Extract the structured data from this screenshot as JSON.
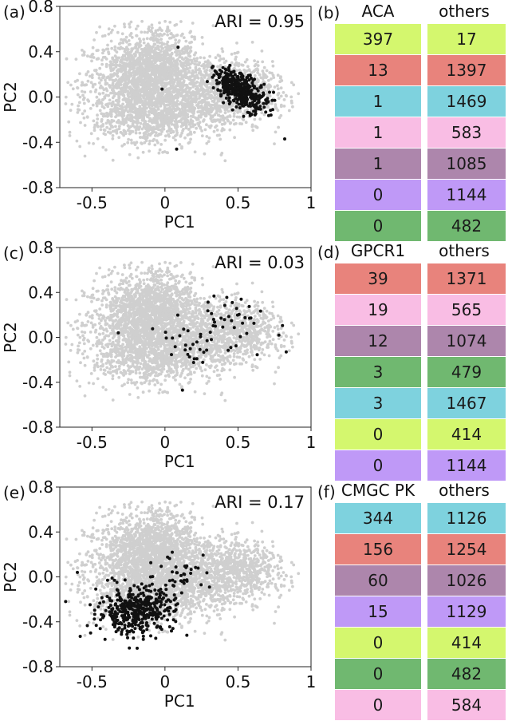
{
  "colors": {
    "background_points": "#cfcfcf",
    "highlight_points": "#111111",
    "cluster_lime": "#d4f76e",
    "cluster_red": "#e8837c",
    "cluster_cyan": "#7ed2de",
    "cluster_pink": "#f9bde4",
    "cluster_mauve": "#ad86ac",
    "cluster_lavender": "#bf99f7",
    "cluster_green": "#70b870"
  },
  "chart_data": [
    {
      "type": "scatter",
      "panel_label": "(a)",
      "annotation": "ARI = 0.95",
      "xlabel": "PC1",
      "ylabel": "PC2",
      "xlim": [
        -0.72,
        1.0
      ],
      "ylim": [
        -0.8,
        0.8
      ],
      "xticks": [
        -0.5,
        0,
        0.5,
        1
      ],
      "xtick_labels": [
        "-0.5",
        "0",
        "0.5",
        "1"
      ],
      "yticks": [
        0.8,
        0.4,
        0.0,
        -0.4,
        -0.8
      ],
      "ytick_labels": [
        "0.8",
        "0.4",
        "0.0",
        "-0.4",
        "-0.8"
      ],
      "series": [
        {
          "name": "others",
          "color": "#cfcfcf",
          "distribution": "background"
        },
        {
          "name": "ACA",
          "color": "#111111",
          "clusters": [
            {
              "cx": 0.52,
              "cy": 0.06,
              "sx": 0.09,
              "sy": 0.09,
              "rho": -0.55,
              "n": 380
            }
          ],
          "outliers": [
            [
              0.09,
              0.44
            ],
            [
              -0.02,
              0.07
            ],
            [
              0.08,
              -0.46
            ],
            [
              0.82,
              -0.37
            ],
            [
              0.35,
              0.22
            ]
          ]
        }
      ]
    },
    {
      "type": "scatter",
      "panel_label": "(c)",
      "annotation": "ARI = 0.03",
      "xlabel": "PC1",
      "ylabel": "PC2",
      "xlim": [
        -0.72,
        1.0
      ],
      "ylim": [
        -0.8,
        0.8
      ],
      "xticks": [
        -0.5,
        0,
        0.5,
        1
      ],
      "xtick_labels": [
        "-0.5",
        "0",
        "0.5",
        "1"
      ],
      "yticks": [
        0.8,
        0.4,
        0.0,
        -0.4,
        -0.8
      ],
      "ytick_labels": [
        "0.8",
        "0.4",
        "0.0",
        "-0.4",
        "-0.8"
      ],
      "series": [
        {
          "name": "others",
          "color": "#cfcfcf",
          "distribution": "background"
        },
        {
          "name": "GPCR1",
          "color": "#111111",
          "clusters": [
            {
              "cx": 0.45,
              "cy": 0.15,
              "sx": 0.15,
              "sy": 0.16,
              "rho": 0.0,
              "n": 42
            },
            {
              "cx": 0.1,
              "cy": -0.05,
              "sx": 0.1,
              "sy": 0.08,
              "rho": 0.0,
              "n": 22
            }
          ],
          "outliers": [
            [
              -0.32,
              0.04
            ],
            [
              0.12,
              -0.47
            ],
            [
              0.83,
              -0.13
            ],
            [
              0.78,
              0.02
            ]
          ]
        }
      ]
    },
    {
      "type": "scatter",
      "panel_label": "(e)",
      "annotation": "ARI = 0.17",
      "xlabel": "PC1",
      "ylabel": "PC2",
      "xlim": [
        -0.72,
        1.0
      ],
      "ylim": [
        -0.8,
        0.8
      ],
      "xticks": [
        -0.5,
        0,
        0.5,
        1
      ],
      "xtick_labels": [
        "-0.5",
        "0",
        "0.5",
        "1"
      ],
      "yticks": [
        0.8,
        0.4,
        0.0,
        -0.4,
        -0.8
      ],
      "ytick_labels": [
        "0.8",
        "0.4",
        "0.0",
        "-0.4",
        "-0.8"
      ],
      "series": [
        {
          "name": "others",
          "color": "#cfcfcf",
          "distribution": "background"
        },
        {
          "name": "CMGC PK",
          "color": "#111111",
          "clusters": [
            {
              "cx": -0.2,
              "cy": -0.3,
              "sx": 0.13,
              "sy": 0.1,
              "rho": 0.1,
              "n": 430
            },
            {
              "cx": 0.1,
              "cy": 0.02,
              "sx": 0.12,
              "sy": 0.1,
              "rho": 0.0,
              "n": 40
            }
          ],
          "outliers": [
            [
              -0.58,
              -0.53
            ],
            [
              -0.6,
              0.04
            ],
            [
              0.05,
              0.22
            ],
            [
              0.15,
              -0.52
            ],
            [
              -0.68,
              -0.22
            ]
          ]
        }
      ]
    },
    {
      "type": "table",
      "panel_label": "(b)",
      "headers": [
        "ACA",
        "others"
      ],
      "rows": [
        {
          "color": "#d4f76e",
          "values": [
            "397",
            "17"
          ]
        },
        {
          "color": "#e8837c",
          "values": [
            "13",
            "1397"
          ]
        },
        {
          "color": "#7ed2de",
          "values": [
            "1",
            "1469"
          ]
        },
        {
          "color": "#f9bde4",
          "values": [
            "1",
            "583"
          ]
        },
        {
          "color": "#ad86ac",
          "values": [
            "1",
            "1085"
          ]
        },
        {
          "color": "#bf99f7",
          "values": [
            "0",
            "1144"
          ]
        },
        {
          "color": "#70b870",
          "values": [
            "0",
            "482"
          ]
        }
      ]
    },
    {
      "type": "table",
      "panel_label": "(d)",
      "headers": [
        "GPCR1",
        "others"
      ],
      "rows": [
        {
          "color": "#e8837c",
          "values": [
            "39",
            "1371"
          ]
        },
        {
          "color": "#f9bde4",
          "values": [
            "19",
            "565"
          ]
        },
        {
          "color": "#ad86ac",
          "values": [
            "12",
            "1074"
          ]
        },
        {
          "color": "#70b870",
          "values": [
            "3",
            "479"
          ]
        },
        {
          "color": "#7ed2de",
          "values": [
            "3",
            "1467"
          ]
        },
        {
          "color": "#d4f76e",
          "values": [
            "0",
            "414"
          ]
        },
        {
          "color": "#bf99f7",
          "values": [
            "0",
            "1144"
          ]
        }
      ]
    },
    {
      "type": "table",
      "panel_label": "(f)",
      "headers": [
        "CMGC PK",
        "others"
      ],
      "rows": [
        {
          "color": "#7ed2de",
          "values": [
            "344",
            "1126"
          ]
        },
        {
          "color": "#e8837c",
          "values": [
            "156",
            "1254"
          ]
        },
        {
          "color": "#ad86ac",
          "values": [
            "60",
            "1026"
          ]
        },
        {
          "color": "#bf99f7",
          "values": [
            "15",
            "1129"
          ]
        },
        {
          "color": "#d4f76e",
          "values": [
            "0",
            "414"
          ]
        },
        {
          "color": "#70b870",
          "values": [
            "0",
            "482"
          ]
        },
        {
          "color": "#f9bde4",
          "values": [
            "0",
            "584"
          ]
        }
      ]
    }
  ]
}
